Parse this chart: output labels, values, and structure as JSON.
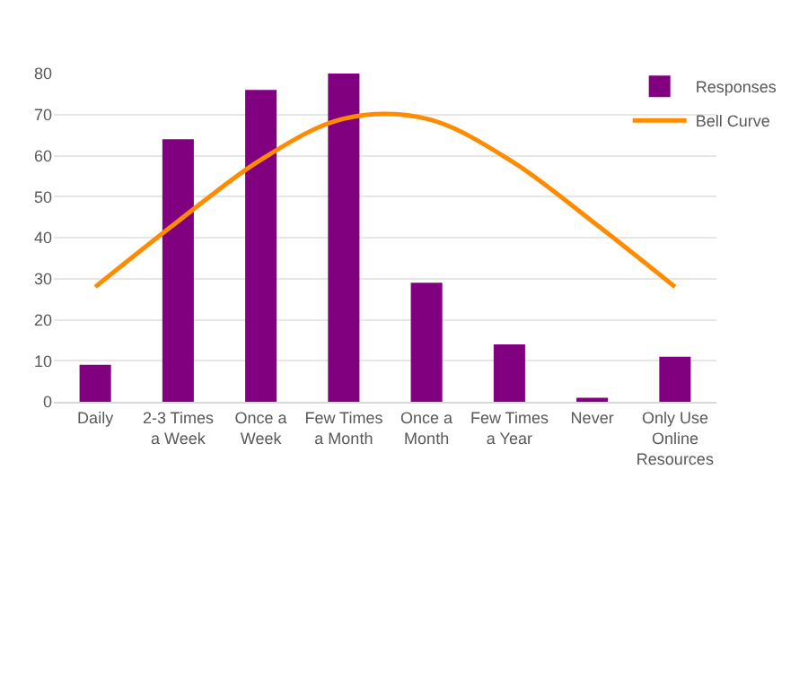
{
  "chart_data": {
    "type": "bar",
    "categories": [
      "Daily",
      "2-3 Times a Week",
      "Once a Week",
      "Few Times a Month",
      "Once a Month",
      "Few Times a Year",
      "Never",
      "Only Use Online Resources"
    ],
    "series": [
      {
        "name": "Responses",
        "color": "#800080",
        "values": [
          9,
          64,
          76,
          80,
          29,
          14,
          1,
          11
        ]
      },
      {
        "name": "Bell Curve",
        "type": "line",
        "color": "#ff8c00",
        "values": [
          28,
          44,
          59,
          69,
          69,
          59,
          44,
          28
        ]
      }
    ],
    "ylim": [
      0,
      80
    ],
    "yticks": [
      0,
      10,
      20,
      30,
      40,
      50,
      60,
      70,
      80
    ],
    "grid": "y",
    "legend": "top right",
    "marker": "none",
    "line_style": "solid"
  }
}
